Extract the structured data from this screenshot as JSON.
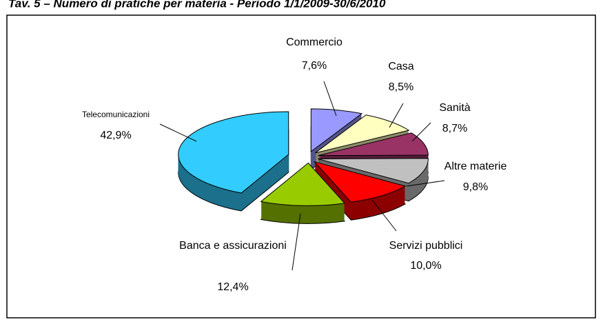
{
  "chart_data": {
    "type": "pie3d",
    "title": "Tav. 5 – Numero di pratiche per materia - Periodo 1/1/2009-30/6/2010",
    "categories": [
      "Commercio",
      "Casa",
      "Sanità",
      "Altre materie",
      "Servizi pubblici",
      "Banca e assicurazioni",
      "Telecomunicazioni"
    ],
    "values": [
      7.6,
      8.5,
      8.7,
      9.8,
      10.0,
      12.4,
      42.9
    ],
    "value_labels": [
      "7,6%",
      "8,5%",
      "8,7%",
      "9,8%",
      "10,0%",
      "12,4%",
      "42,9%"
    ],
    "colors": [
      "#9999ff",
      "#ffffc0",
      "#993366",
      "#c0c0c0",
      "#ff0000",
      "#99cc00",
      "#33ccff"
    ]
  }
}
